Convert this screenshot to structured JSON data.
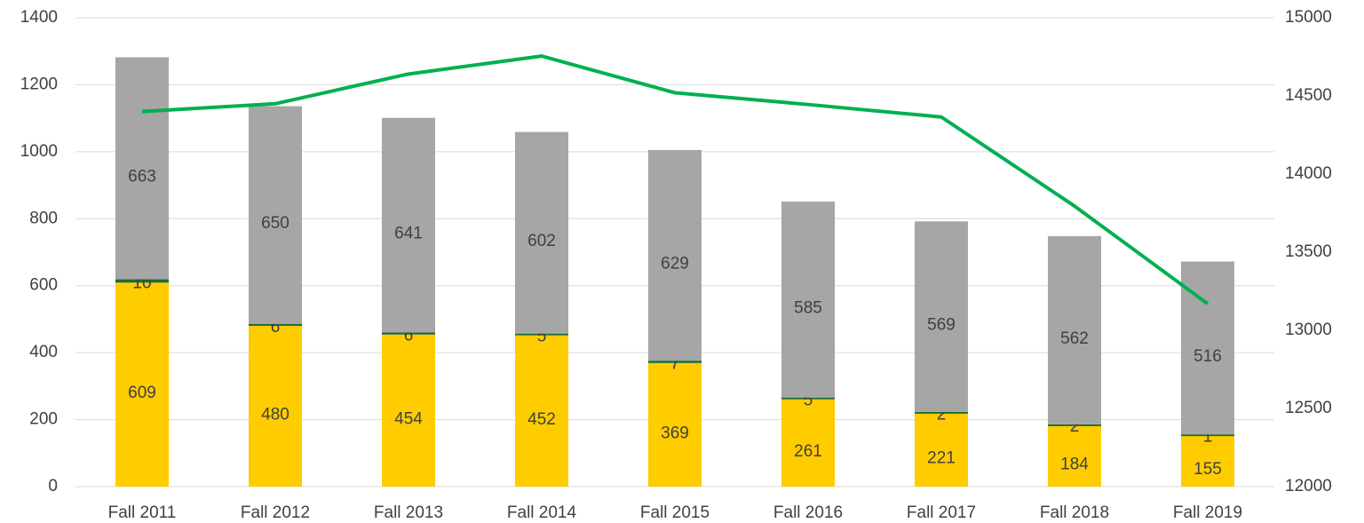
{
  "chart_data": {
    "type": "bar_line",
    "categories": [
      "Fall 2011",
      "Fall 2012",
      "Fall 2013",
      "Fall 2014",
      "Fall 2015",
      "Fall 2016",
      "Fall 2017",
      "Fall 2018",
      "Fall 2019"
    ],
    "series": [
      {
        "color": "#FFCC00",
        "values": [
          609,
          480,
          454,
          452,
          369,
          261,
          221,
          184,
          155
        ]
      },
      {
        "color": "#1E6B35",
        "values": [
          10,
          6,
          6,
          5,
          7,
          5,
          2,
          2,
          1
        ]
      },
      {
        "color": "#A6A6A6",
        "values": [
          663,
          650,
          641,
          602,
          629,
          585,
          569,
          562,
          516
        ]
      },
      {
        "color": "#00B050",
        "axis": "y2",
        "values": [
          14400,
          14450,
          14640,
          14755,
          14520,
          14445,
          14365,
          13795,
          13170
        ]
      }
    ],
    "ylim": [
      0,
      1400
    ],
    "yticks": [
      0,
      200,
      400,
      600,
      800,
      1000,
      1200,
      1400
    ],
    "y2lim": [
      12000,
      15000
    ],
    "y2ticks": [
      12000,
      12500,
      13000,
      13500,
      14000,
      14500,
      15000
    ],
    "grid": true
  }
}
